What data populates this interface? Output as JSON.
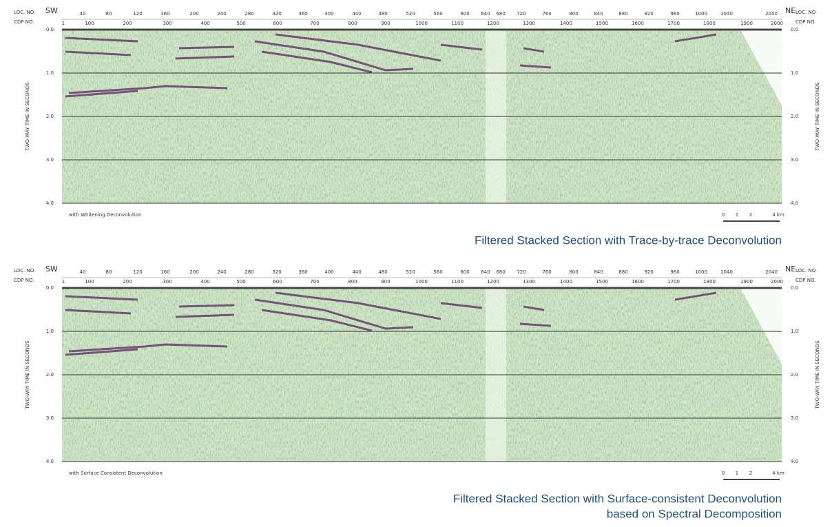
{
  "axes": {
    "loc_label": "LOC. NO.",
    "cdp_label": "CDP NO.",
    "sw": "SW",
    "ne": "NE",
    "loc_ticks": [
      "40",
      "80",
      "120",
      "160",
      "200",
      "240",
      "280",
      "320",
      "360",
      "400",
      "440",
      "480",
      "520",
      "560",
      "600",
      "640",
      "680",
      "720",
      "760",
      "800",
      "840",
      "880",
      "920",
      "960",
      "1000",
      "1040",
      "2040"
    ],
    "cdp_ticks": [
      "1",
      "100",
      "200",
      "300",
      "400",
      "500",
      "600",
      "700",
      "800",
      "900",
      "1000",
      "1100",
      "1200",
      "1300",
      "1400",
      "1500",
      "1600",
      "1700",
      "1800",
      "1900",
      "2000"
    ],
    "time_ticks": [
      "0.0",
      "1.0",
      "2.0",
      "3.0",
      "4.0"
    ],
    "time_label": "TWO-WAY TIME IN SECONDS",
    "scale": [
      "0",
      "1",
      "2",
      "4 km"
    ]
  },
  "panels": [
    {
      "note": "with Whitening Deconvolution",
      "caption": [
        "Filtered Stacked Section with Trace-by-trace Deconvolution"
      ]
    },
    {
      "note": "with Surface Consistent Deconvolution",
      "caption": [
        "Filtered Stacked Section with Surface-consistent Deconvolution",
        "based on Spectral Decomposition"
      ]
    }
  ]
}
